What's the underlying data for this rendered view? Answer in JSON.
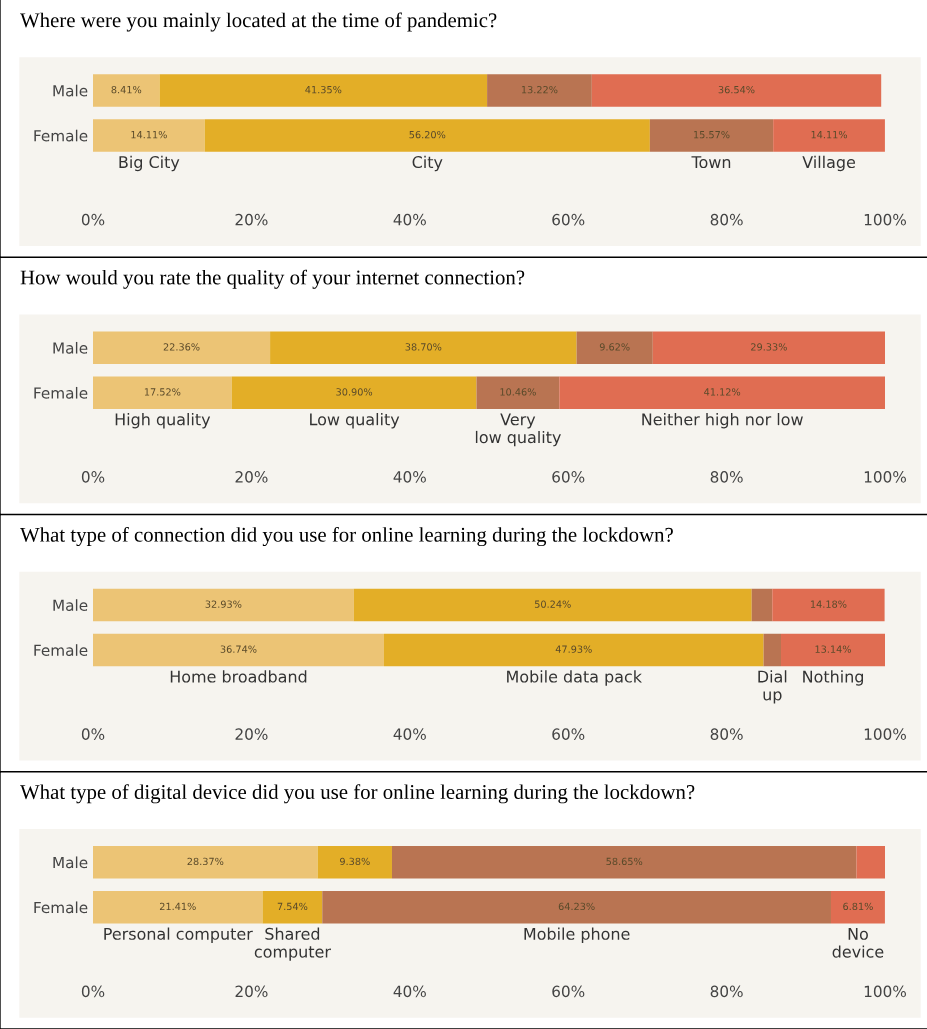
{
  "chart_data": [
    {
      "type": "bar",
      "orientation": "horizontal",
      "stacked": true,
      "title": "Where were you mainly located at the time of pandemic?",
      "categories": [
        "Male",
        "Female"
      ],
      "xlim": [
        0,
        100
      ],
      "xticks": [
        {
          "value": 0,
          "label": "0%"
        },
        {
          "value": 20,
          "label": "20%"
        },
        {
          "value": 40,
          "label": "40%"
        },
        {
          "value": 60,
          "label": "60%"
        },
        {
          "value": 80,
          "label": "80%"
        },
        {
          "value": 100,
          "label": "100%"
        }
      ],
      "legend": false,
      "series": [
        {
          "name": "Big City",
          "color": "#ecc475",
          "values": [
            8.41,
            14.11
          ],
          "value_labels": [
            "8.41%",
            "14.11%"
          ]
        },
        {
          "name": "City",
          "color": "#e3ae27",
          "values": [
            41.35,
            56.2
          ],
          "value_labels": [
            "41.35%",
            "56.20%"
          ]
        },
        {
          "name": "Town",
          "color": "#b97452",
          "values": [
            13.22,
            15.57
          ],
          "value_labels": [
            "13.22%",
            "15.57%"
          ]
        },
        {
          "name": "Village",
          "color": "#e06d52",
          "values": [
            36.54,
            14.11
          ],
          "value_labels": [
            "36.54%",
            "14.11%"
          ]
        }
      ]
    },
    {
      "type": "bar",
      "orientation": "horizontal",
      "stacked": true,
      "title": "How would you rate the quality of your internet connection?",
      "categories": [
        "Male",
        "Female"
      ],
      "xlim": [
        0,
        100
      ],
      "xticks": [
        {
          "value": 0,
          "label": "0%"
        },
        {
          "value": 20,
          "label": "20%"
        },
        {
          "value": 40,
          "label": "40%"
        },
        {
          "value": 60,
          "label": "60%"
        },
        {
          "value": 80,
          "label": "80%"
        },
        {
          "value": 100,
          "label": "100%"
        }
      ],
      "legend": false,
      "series": [
        {
          "name": "High quality",
          "color": "#ecc475",
          "values": [
            22.36,
            17.52
          ],
          "value_labels": [
            "22.36%",
            "17.52%"
          ]
        },
        {
          "name": "Low quality",
          "color": "#e3ae27",
          "values": [
            38.7,
            30.9
          ],
          "value_labels": [
            "38.70%",
            "30.90%"
          ]
        },
        {
          "name": "Very low quality",
          "color": "#b97452",
          "values": [
            9.62,
            10.46
          ],
          "value_labels": [
            "9.62%",
            "10.46%"
          ]
        },
        {
          "name": "Neither high nor low",
          "color": "#e06d52",
          "values": [
            29.33,
            41.12
          ],
          "value_labels": [
            "29.33%",
            "41.12%"
          ]
        }
      ]
    },
    {
      "type": "bar",
      "orientation": "horizontal",
      "stacked": true,
      "title": "What type of connection did you use for online learning during the lockdown?",
      "categories": [
        "Male",
        "Female"
      ],
      "xlim": [
        0,
        100
      ],
      "xticks": [
        {
          "value": 0,
          "label": "0%"
        },
        {
          "value": 20,
          "label": "20%"
        },
        {
          "value": 40,
          "label": "40%"
        },
        {
          "value": 60,
          "label": "60%"
        },
        {
          "value": 80,
          "label": "80%"
        },
        {
          "value": 100,
          "label": "100%"
        }
      ],
      "legend": false,
      "series": [
        {
          "name": "Home broadband",
          "color": "#ecc475",
          "values": [
            32.93,
            36.74
          ],
          "value_labels": [
            "32.93%",
            "36.74%"
          ]
        },
        {
          "name": "Mobile data pack",
          "color": "#e3ae27",
          "values": [
            50.24,
            47.93
          ],
          "value_labels": [
            "50.24%",
            "47.93%"
          ]
        },
        {
          "name": "Dial up",
          "color": "#b97452",
          "values": [
            2.6,
            2.2
          ],
          "value_labels": [
            null,
            null
          ]
        },
        {
          "name": "Nothing",
          "color": "#e06d52",
          "values": [
            14.18,
            13.14
          ],
          "value_labels": [
            "14.18%",
            "13.14%"
          ]
        }
      ]
    },
    {
      "type": "bar",
      "orientation": "horizontal",
      "stacked": true,
      "title": "What type of digital device did you use for online learning during the lockdown?",
      "categories": [
        "Male",
        "Female"
      ],
      "xlim": [
        0,
        100
      ],
      "xticks": [
        {
          "value": 0,
          "label": "0%"
        },
        {
          "value": 20,
          "label": "20%"
        },
        {
          "value": 40,
          "label": "40%"
        },
        {
          "value": 60,
          "label": "60%"
        },
        {
          "value": 80,
          "label": "80%"
        },
        {
          "value": 100,
          "label": "100%"
        }
      ],
      "legend": false,
      "series": [
        {
          "name": "Personal computer",
          "color": "#ecc475",
          "values": [
            28.37,
            21.41
          ],
          "value_labels": [
            "28.37%",
            "21.41%"
          ]
        },
        {
          "name": "Shared computer",
          "color": "#e3ae27",
          "values": [
            9.38,
            7.54
          ],
          "value_labels": [
            "9.38%",
            "7.54%"
          ]
        },
        {
          "name": "Mobile phone",
          "color": "#b97452",
          "values": [
            58.65,
            64.23
          ],
          "value_labels": [
            "58.65%",
            "64.23%"
          ]
        },
        {
          "name": "No device",
          "color": "#e06d52",
          "values": [
            3.6,
            6.81
          ],
          "value_labels": [
            null,
            "6.81%"
          ]
        }
      ]
    }
  ]
}
